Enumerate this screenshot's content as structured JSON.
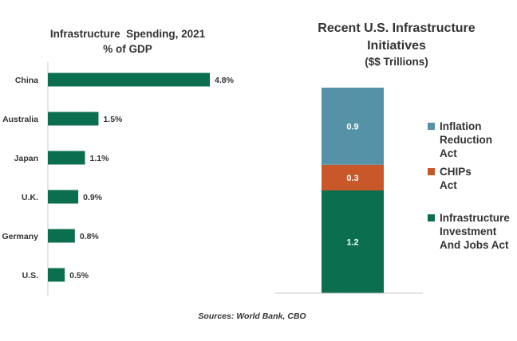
{
  "chart_data": [
    {
      "type": "bar",
      "orientation": "horizontal",
      "title": "Infrastructure  Spending, 2021",
      "subtitle": "% of GDP",
      "categories": [
        "China",
        "Australia",
        "Japan",
        "U.K.",
        "Germany",
        "U.S."
      ],
      "values": [
        4.8,
        1.5,
        1.1,
        0.9,
        0.8,
        0.5
      ],
      "data_labels": [
        "4.8%",
        "1.5%",
        "1.1%",
        "0.9%",
        "0.8%",
        "0.5%"
      ],
      "xlim": [
        0,
        5.0
      ],
      "bar_color": "#0b6e4f",
      "grid": false
    },
    {
      "type": "bar",
      "stacked": true,
      "title_line1": "Recent U.S. Infrastructure",
      "title_line2": "Initiatives",
      "subtitle": "($$ Trillions)",
      "categories": [
        ""
      ],
      "series": [
        {
          "name": "Infrastructure Investment And Jobs Act",
          "legend_lines": [
            "Infrastructure",
            "Investment",
            "And Jobs Act"
          ],
          "values": [
            1.2
          ],
          "label": "1.2",
          "color": "#0b6e4f"
        },
        {
          "name": "CHIPs Act",
          "legend_lines": [
            "CHIPs",
            "Act"
          ],
          "values": [
            0.3
          ],
          "label": "0.3",
          "color": "#c8572a"
        },
        {
          "name": "Inflation Reduction Act",
          "legend_lines": [
            "Inflation",
            "Reduction",
            "Act"
          ],
          "values": [
            0.9
          ],
          "label": "0.9",
          "color": "#5592a8"
        }
      ],
      "ylim": [
        0,
        2.4
      ],
      "legend_position": "right",
      "grid": false
    }
  ],
  "source": "Sources: World Bank, CBO"
}
